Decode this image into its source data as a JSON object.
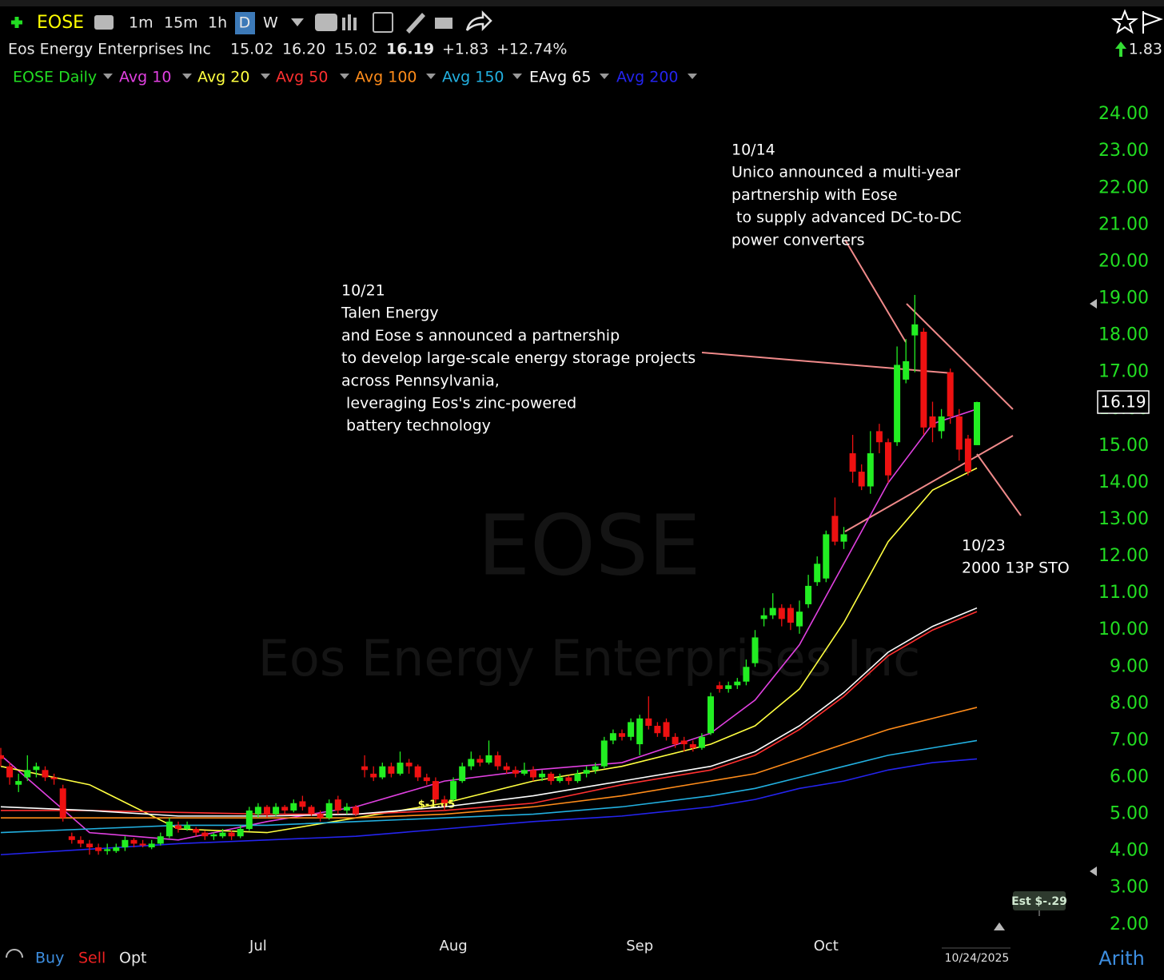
{
  "header": {
    "symbol": "EOSE",
    "intervals": [
      "1m",
      "15m",
      "1h",
      "D",
      "W"
    ],
    "company": "Eos Energy Enterprises Inc",
    "open": "15.02",
    "high": "16.20",
    "low": "15.02",
    "last": "16.19",
    "change": "+1.83",
    "change_pct": "+12.74%",
    "right_change": "1.83"
  },
  "footer": {
    "buy": "Buy",
    "sell": "Sell",
    "opt": "Opt",
    "date": "10/24/2025",
    "scale": "Arith"
  },
  "chart_data": {
    "type": "candlestick",
    "watermark": [
      "EOSE",
      "Eos Energy Enterprises Inc"
    ],
    "categories": [
      null,
      null,
      null,
      null,
      null,
      null,
      null,
      null,
      null,
      null,
      null,
      null,
      null,
      null,
      null,
      null,
      null,
      null,
      null,
      null,
      null,
      null,
      null,
      null,
      null,
      null,
      null,
      null,
      null,
      "Jul",
      null,
      null,
      null,
      null,
      null,
      null,
      null,
      null,
      null,
      null,
      null,
      null,
      null,
      null,
      null,
      null,
      null,
      null,
      null,
      null,
      null,
      "Aug",
      null,
      null,
      null,
      null,
      null,
      null,
      null,
      null,
      null,
      null,
      null,
      null,
      null,
      null,
      null,
      null,
      null,
      null,
      null,
      null,
      "Sep",
      null,
      null,
      null,
      null,
      null,
      null,
      null,
      null,
      null,
      null,
      null,
      null,
      null,
      null,
      null,
      null,
      null,
      null,
      null,
      null,
      "Oct",
      null,
      null,
      null,
      null,
      null,
      null,
      null,
      null,
      null,
      null,
      null,
      null,
      null,
      null,
      null,
      null,
      null
    ],
    "candles": {
      "name": "EOSE Daily",
      "color": "#22dd22",
      "up_color": "#22ee22",
      "down_color": "#ee1111",
      "ohlc": [
        [
          6.6,
          6.8,
          6.3,
          6.5
        ],
        [
          6.3,
          6.4,
          5.8,
          6.0
        ],
        [
          5.8,
          6.1,
          5.6,
          5.9
        ],
        [
          6.0,
          6.6,
          5.9,
          6.2
        ],
        [
          6.2,
          6.4,
          6.0,
          6.3
        ],
        [
          6.2,
          6.3,
          5.9,
          6.0
        ],
        [
          6.0,
          6.1,
          5.8,
          5.95
        ],
        [
          5.7,
          5.8,
          4.8,
          4.9
        ],
        [
          4.4,
          4.5,
          4.2,
          4.3
        ],
        [
          4.3,
          4.4,
          4.1,
          4.2
        ],
        [
          4.2,
          4.3,
          3.9,
          4.1
        ],
        [
          4.1,
          4.2,
          3.9,
          4.0
        ],
        [
          4.0,
          4.2,
          3.9,
          4.05
        ],
        [
          4.0,
          4.2,
          3.95,
          4.1
        ],
        [
          4.1,
          4.4,
          4.0,
          4.3
        ],
        [
          4.3,
          4.35,
          4.1,
          4.2
        ],
        [
          4.2,
          4.3,
          4.1,
          4.15
        ],
        [
          4.1,
          4.3,
          4.05,
          4.2
        ],
        [
          4.2,
          4.5,
          4.15,
          4.4
        ],
        [
          4.4,
          4.9,
          4.35,
          4.8
        ],
        [
          4.7,
          4.8,
          4.5,
          4.6
        ],
        [
          4.6,
          4.8,
          4.55,
          4.7
        ],
        [
          4.6,
          4.65,
          4.4,
          4.5
        ],
        [
          4.5,
          4.55,
          4.3,
          4.4
        ],
        [
          4.4,
          4.5,
          4.3,
          4.45
        ],
        [
          4.4,
          4.6,
          4.35,
          4.5
        ],
        [
          4.5,
          4.55,
          4.3,
          4.4
        ],
        [
          4.4,
          4.7,
          4.35,
          4.6
        ],
        [
          4.6,
          5.2,
          4.55,
          5.1
        ],
        [
          5.0,
          5.3,
          4.9,
          5.2
        ],
        [
          5.2,
          5.25,
          4.9,
          5.0
        ],
        [
          5.0,
          5.3,
          4.95,
          5.2
        ],
        [
          5.2,
          5.25,
          5.0,
          5.1
        ],
        [
          5.1,
          5.4,
          5.05,
          5.3
        ],
        [
          5.35,
          5.5,
          5.1,
          5.2
        ],
        [
          5.2,
          5.25,
          4.95,
          5.0
        ],
        [
          5.0,
          5.1,
          4.8,
          4.9
        ],
        [
          4.9,
          5.4,
          4.85,
          5.3
        ],
        [
          5.4,
          5.5,
          5.0,
          5.1
        ],
        [
          5.1,
          5.3,
          5.0,
          5.2
        ],
        [
          5.2,
          5.25,
          4.95,
          5.0
        ],
        [
          6.3,
          6.6,
          6.0,
          6.2
        ],
        [
          6.1,
          6.3,
          5.9,
          6.0
        ],
        [
          6.0,
          6.4,
          5.95,
          6.3
        ],
        [
          6.3,
          6.4,
          6.0,
          6.1
        ],
        [
          6.1,
          6.7,
          6.05,
          6.4
        ],
        [
          6.4,
          6.5,
          6.1,
          6.3
        ],
        [
          6.3,
          6.35,
          5.9,
          6.0
        ],
        [
          6.0,
          6.1,
          5.8,
          5.9
        ],
        [
          5.9,
          6.0,
          5.3,
          5.4
        ],
        [
          5.4,
          5.5,
          5.1,
          5.3
        ],
        [
          5.4,
          6.0,
          5.35,
          5.9
        ],
        [
          5.9,
          6.4,
          5.85,
          6.3
        ],
        [
          6.3,
          6.7,
          6.2,
          6.5
        ],
        [
          6.5,
          6.6,
          6.3,
          6.4
        ],
        [
          6.4,
          7.0,
          6.35,
          6.6
        ],
        [
          6.6,
          6.7,
          6.2,
          6.3
        ],
        [
          6.3,
          6.4,
          6.1,
          6.2
        ],
        [
          6.2,
          6.3,
          6.0,
          6.1
        ],
        [
          6.1,
          6.4,
          6.05,
          6.2
        ],
        [
          6.2,
          6.3,
          5.9,
          6.0
        ],
        [
          6.0,
          6.2,
          5.9,
          6.1
        ],
        [
          6.1,
          6.15,
          5.8,
          5.9
        ],
        [
          5.9,
          6.1,
          5.85,
          6.0
        ],
        [
          6.0,
          6.05,
          5.8,
          5.9
        ],
        [
          5.9,
          6.2,
          5.85,
          6.1
        ],
        [
          6.1,
          6.3,
          6.0,
          6.2
        ],
        [
          6.2,
          6.4,
          6.1,
          6.3
        ],
        [
          6.3,
          7.1,
          6.25,
          7.0
        ],
        [
          7.0,
          7.3,
          6.9,
          7.2
        ],
        [
          7.2,
          7.3,
          7.0,
          7.1
        ],
        [
          7.1,
          7.6,
          7.0,
          7.5
        ],
        [
          6.9,
          7.7,
          6.6,
          7.6
        ],
        [
          7.6,
          8.2,
          7.3,
          7.4
        ],
        [
          7.4,
          7.5,
          7.1,
          7.2
        ],
        [
          7.5,
          7.6,
          7.0,
          7.1
        ],
        [
          7.1,
          7.2,
          6.8,
          6.9
        ],
        [
          7.0,
          7.1,
          6.7,
          6.9
        ],
        [
          6.9,
          7.0,
          6.7,
          6.8
        ],
        [
          6.8,
          7.2,
          6.75,
          7.1
        ],
        [
          7.2,
          8.3,
          7.15,
          8.2
        ],
        [
          8.5,
          8.6,
          8.3,
          8.4
        ],
        [
          8.4,
          8.6,
          8.3,
          8.5
        ],
        [
          8.5,
          8.7,
          8.4,
          8.6
        ],
        [
          8.6,
          9.2,
          8.5,
          9.0
        ],
        [
          9.1,
          10.0,
          9.0,
          9.8
        ],
        [
          10.3,
          10.6,
          10.1,
          10.4
        ],
        [
          10.4,
          11.0,
          10.3,
          10.6
        ],
        [
          10.6,
          10.7,
          10.1,
          10.3
        ],
        [
          10.6,
          10.7,
          10.0,
          10.2
        ],
        [
          10.1,
          10.8,
          9.9,
          10.5
        ],
        [
          10.7,
          11.5,
          10.6,
          11.2
        ],
        [
          11.3,
          12.0,
          11.2,
          11.8
        ],
        [
          11.4,
          12.7,
          11.3,
          12.6
        ],
        [
          13.1,
          13.6,
          12.3,
          12.4
        ],
        [
          12.4,
          12.8,
          12.2,
          12.6
        ],
        [
          14.8,
          15.3,
          14.0,
          14.3
        ],
        [
          14.3,
          14.5,
          13.8,
          13.9
        ],
        [
          13.9,
          15.4,
          13.7,
          14.8
        ],
        [
          15.4,
          15.6,
          14.8,
          15.1
        ],
        [
          15.1,
          15.2,
          14.0,
          14.2
        ],
        [
          15.1,
          17.7,
          15.0,
          17.2
        ],
        [
          16.8,
          17.9,
          16.7,
          17.3
        ],
        [
          18.0,
          19.1,
          17.0,
          18.3
        ],
        [
          18.1,
          18.2,
          15.3,
          15.5
        ],
        [
          15.8,
          16.2,
          15.1,
          15.5
        ],
        [
          15.4,
          16.0,
          15.2,
          15.8
        ],
        [
          17.0,
          17.1,
          15.6,
          15.8
        ],
        [
          15.8,
          16.0,
          14.6,
          14.9
        ],
        [
          15.2,
          15.3,
          14.2,
          14.3
        ],
        [
          15.02,
          16.2,
          15.02,
          16.19
        ]
      ]
    },
    "series": [
      {
        "name": "Avg 10",
        "color": "#e040e0",
        "x": [
          0,
          10,
          20,
          30,
          40,
          50,
          60,
          70,
          80,
          85,
          90,
          95,
          100,
          105,
          110
        ],
        "values": [
          6.6,
          4.5,
          4.3,
          4.8,
          5.2,
          5.9,
          6.2,
          6.4,
          7.2,
          8.1,
          9.6,
          11.8,
          14.0,
          15.6,
          16.0
        ]
      },
      {
        "name": "Avg 20",
        "color": "#ffff40",
        "x": [
          0,
          10,
          20,
          30,
          40,
          50,
          60,
          70,
          80,
          85,
          90,
          95,
          100,
          105,
          110
        ],
        "values": [
          6.3,
          5.8,
          4.6,
          4.5,
          4.9,
          5.3,
          5.9,
          6.3,
          6.9,
          7.4,
          8.4,
          10.2,
          12.4,
          13.8,
          14.4
        ]
      },
      {
        "name": "Avg 50",
        "color": "#ff3030",
        "x": [
          0,
          10,
          20,
          30,
          40,
          50,
          60,
          70,
          80,
          85,
          90,
          95,
          100,
          105,
          110
        ],
        "values": [
          5.1,
          5.1,
          5.05,
          5.0,
          5.0,
          5.1,
          5.3,
          5.8,
          6.2,
          6.6,
          7.3,
          8.2,
          9.3,
          10.0,
          10.5
        ]
      },
      {
        "name": "Avg 100",
        "color": "#ff8c1a",
        "x": [
          0,
          10,
          20,
          30,
          40,
          50,
          60,
          70,
          80,
          85,
          90,
          95,
          100,
          105,
          110
        ],
        "values": [
          4.9,
          4.9,
          4.9,
          4.9,
          4.9,
          5.0,
          5.2,
          5.5,
          5.9,
          6.1,
          6.5,
          6.9,
          7.3,
          7.6,
          7.9
        ]
      },
      {
        "name": "Avg 150",
        "color": "#22b0e0",
        "x": [
          0,
          10,
          20,
          30,
          40,
          50,
          60,
          70,
          80,
          85,
          90,
          95,
          100,
          105,
          110
        ],
        "values": [
          4.5,
          4.6,
          4.7,
          4.7,
          4.8,
          4.9,
          5.0,
          5.2,
          5.5,
          5.7,
          6.0,
          6.3,
          6.6,
          6.8,
          7.0
        ]
      },
      {
        "name": "EAvg 65",
        "color": "#ffffff",
        "x": [
          0,
          10,
          20,
          30,
          40,
          50,
          60,
          70,
          80,
          85,
          90,
          95,
          100,
          105,
          110
        ],
        "values": [
          5.2,
          5.1,
          4.95,
          4.95,
          5.0,
          5.2,
          5.5,
          5.9,
          6.3,
          6.7,
          7.4,
          8.3,
          9.4,
          10.1,
          10.6
        ]
      },
      {
        "name": "Avg 200",
        "color": "#2424ee",
        "x": [
          0,
          10,
          20,
          30,
          40,
          50,
          60,
          70,
          80,
          85,
          90,
          95,
          100,
          105,
          110
        ],
        "values": [
          3.9,
          4.05,
          4.2,
          4.3,
          4.4,
          4.6,
          4.8,
          4.95,
          5.2,
          5.4,
          5.7,
          5.9,
          6.2,
          6.4,
          6.5
        ]
      }
    ],
    "ylim": [
      1.67,
      24.72
    ],
    "yticks": [
      {
        "value": 2,
        "label": "2.00"
      },
      {
        "value": 3,
        "label": "3.00"
      },
      {
        "value": 4,
        "label": "4.00"
      },
      {
        "value": 5,
        "label": "5.00"
      },
      {
        "value": 6,
        "label": "6.00"
      },
      {
        "value": 7,
        "label": "7.00"
      },
      {
        "value": 8,
        "label": "8.00"
      },
      {
        "value": 9,
        "label": "9.00"
      },
      {
        "value": 10,
        "label": "10.00"
      },
      {
        "value": 11,
        "label": "11.00"
      },
      {
        "value": 12,
        "label": "12.00"
      },
      {
        "value": 13,
        "label": "13.00"
      },
      {
        "value": 14,
        "label": "14.00"
      },
      {
        "value": 15,
        "label": "15.00"
      },
      {
        "value": 16,
        "label": "16.00"
      },
      {
        "value": 17,
        "label": "17.00"
      },
      {
        "value": 18,
        "label": "18.00"
      },
      {
        "value": 19,
        "label": "19.00"
      },
      {
        "value": 20,
        "label": "20.00"
      },
      {
        "value": 21,
        "label": "21.00"
      },
      {
        "value": 22,
        "label": "22.00"
      },
      {
        "value": 23,
        "label": "23.00"
      },
      {
        "value": 24,
        "label": "24.00"
      }
    ],
    "grid": false,
    "annotations": [
      {
        "lines": [
          "10/14",
          "Unico announced a multi-year",
          "partnership with Eose",
          " to supply advanced DC-to-DC",
          "power converters"
        ]
      },
      {
        "lines": [
          "10/21",
          "Talen Energy",
          "and Eose s announced a partnership",
          "to develop large-scale energy storage projects",
          "across Pennsylvania,",
          " leveraging Eos's zinc-powered",
          " battery technology"
        ]
      },
      {
        "lines": [
          "10/23",
          "2000 13P STO"
        ]
      }
    ],
    "earnings_labels": [
      "$-1.05",
      "Est $-.29"
    ]
  }
}
